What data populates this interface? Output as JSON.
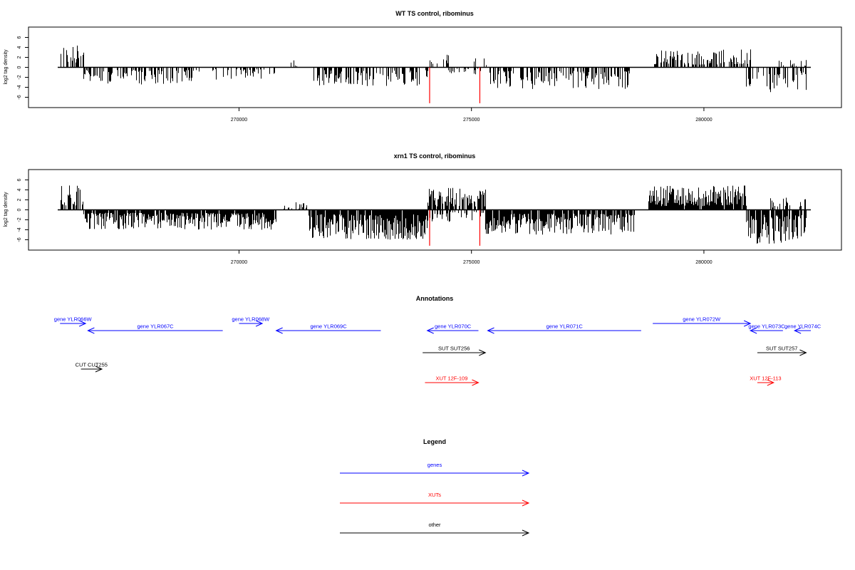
{
  "colors": {
    "gene": "#0000ff",
    "xut": "#ff0000",
    "other": "#000000",
    "marker": "#ff0000",
    "bars": "#000000"
  },
  "chart_data": [
    {
      "type": "bar",
      "title": "WT TS control, ribominus",
      "ylabel": "log2 tag density",
      "yticks": [
        "-6",
        "-4",
        "-2",
        "0",
        "2",
        "4",
        "6"
      ],
      "xticks": [
        "270000",
        "275000",
        "280000"
      ],
      "xlim": [
        266100,
        282300
      ],
      "ylim": [
        -7.5,
        7.5
      ],
      "markers_x": [
        274100,
        275180
      ],
      "segments": [
        {
          "from": 266150,
          "to": 266650,
          "sign": 1,
          "max": 4.5,
          "dense": 0.6
        },
        {
          "from": 266650,
          "to": 269150,
          "sign": -1,
          "max": 3.5,
          "dense": 0.5
        },
        {
          "from": 269250,
          "to": 270900,
          "sign": -1,
          "max": 2.5,
          "dense": 0.35
        },
        {
          "from": 271050,
          "to": 271400,
          "sign": 1,
          "max": 1.7,
          "dense": 0.2
        },
        {
          "from": 271600,
          "to": 274050,
          "sign": -1,
          "max": 3.8,
          "dense": 0.5
        },
        {
          "from": 274050,
          "to": 274500,
          "sign": 1,
          "max": 2.8,
          "dense": 0.25
        },
        {
          "from": 274500,
          "to": 275300,
          "sign": -1,
          "max": 1.8,
          "dense": 0.2
        },
        {
          "from": 275050,
          "to": 275350,
          "sign": 1,
          "max": 2.8,
          "dense": 0.2
        },
        {
          "from": 275350,
          "to": 278400,
          "sign": -1,
          "max": 4.5,
          "dense": 0.55
        },
        {
          "from": 278900,
          "to": 281000,
          "sign": 1,
          "max": 3.6,
          "dense": 0.55
        },
        {
          "from": 280900,
          "to": 282200,
          "sign": -1,
          "max": 5.0,
          "dense": 0.5
        },
        {
          "from": 281500,
          "to": 282200,
          "sign": 1,
          "max": 1.8,
          "dense": 0.25
        }
      ]
    },
    {
      "type": "bar",
      "title": "xrn1 TS control, ribominus",
      "ylabel": "log2 tag density",
      "yticks": [
        "-6",
        "-4",
        "-2",
        "0",
        "2",
        "4",
        "6"
      ],
      "xticks": [
        "270000",
        "275000",
        "280000"
      ],
      "xlim": [
        266100,
        282300
      ],
      "ylim": [
        -7.5,
        7.5
      ],
      "markers_x": [
        274100,
        275180
      ],
      "segments": [
        {
          "from": 266150,
          "to": 266650,
          "sign": 1,
          "max": 5.5,
          "dense": 0.7
        },
        {
          "from": 266650,
          "to": 270800,
          "sign": -1,
          "max": 4.0,
          "dense": 0.9
        },
        {
          "from": 270900,
          "to": 271450,
          "sign": 1,
          "max": 1.6,
          "dense": 0.25
        },
        {
          "from": 271500,
          "to": 274050,
          "sign": -1,
          "max": 6.0,
          "dense": 0.95
        },
        {
          "from": 274050,
          "to": 275300,
          "sign": 1,
          "max": 4.5,
          "dense": 0.85
        },
        {
          "from": 274050,
          "to": 275300,
          "sign": -1,
          "max": 2.5,
          "dense": 0.4
        },
        {
          "from": 275300,
          "to": 278500,
          "sign": -1,
          "max": 5.0,
          "dense": 0.9
        },
        {
          "from": 278800,
          "to": 280900,
          "sign": 1,
          "max": 5.0,
          "dense": 0.95
        },
        {
          "from": 280900,
          "to": 282200,
          "sign": -1,
          "max": 6.8,
          "dense": 0.85
        },
        {
          "from": 281400,
          "to": 282200,
          "sign": 1,
          "max": 2.5,
          "dense": 0.4
        }
      ]
    }
  ],
  "annotations": {
    "title": "Annotations",
    "items": [
      {
        "label": "gene YLR066W",
        "kind": "gene",
        "start": 266150,
        "end": 266700,
        "row": 0
      },
      {
        "label": "gene YLR067C",
        "kind": "gene",
        "start": 266750,
        "end": 269650,
        "row": 1
      },
      {
        "label": "gene YLR068W",
        "kind": "gene",
        "start": 270000,
        "end": 270500,
        "row": 0
      },
      {
        "label": "gene YLR069C",
        "kind": "gene",
        "start": 270800,
        "end": 273050,
        "row": 1
      },
      {
        "label": "gene YLR070C",
        "kind": "gene",
        "start": 274050,
        "end": 275150,
        "row": 1
      },
      {
        "label": "gene YLR071C",
        "kind": "gene",
        "start": 275350,
        "end": 278650,
        "row": 1
      },
      {
        "label": "gene YLR072W",
        "kind": "gene",
        "start": 278900,
        "end": 281000,
        "row": 0
      },
      {
        "label": "gene YLR073C",
        "kind": "gene",
        "start": 281000,
        "end": 281700,
        "row": 1
      },
      {
        "label": "gene YLR074C",
        "kind": "gene",
        "start": 281950,
        "end": 282300,
        "row": 1
      },
      {
        "label": "SUT SUT256",
        "kind": "other",
        "start": 273950,
        "end": 275300,
        "row": 2
      },
      {
        "label": "SUT SUT257",
        "kind": "other",
        "start": 281150,
        "end": 282200,
        "row": 2
      },
      {
        "label": "CUT CUT255",
        "kind": "other",
        "start": 266600,
        "end": 267050,
        "row": 3
      },
      {
        "label": "XUT 12F-109",
        "kind": "xut",
        "start": 274000,
        "end": 275150,
        "row": 4
      },
      {
        "label": "XUT 12F-113",
        "kind": "xut",
        "start": 281150,
        "end": 281500,
        "row": 4
      }
    ]
  },
  "legend": {
    "title": "Legend",
    "items": [
      {
        "label": "genes",
        "kind": "gene"
      },
      {
        "label": "XUTs",
        "kind": "xut"
      },
      {
        "label": "other",
        "kind": "other"
      }
    ]
  }
}
